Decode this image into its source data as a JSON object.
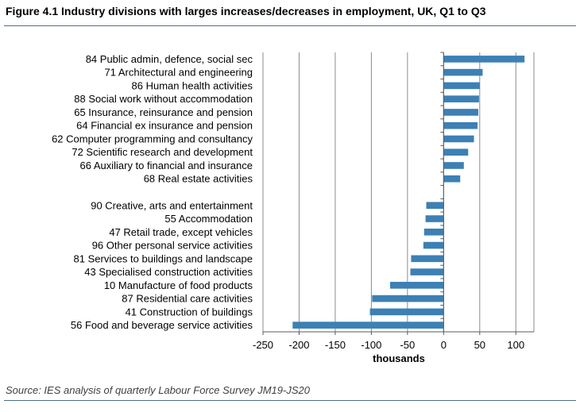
{
  "title": "Figure 4.1 Industry divisions with larges increases/decreases in employment, UK, Q1 to Q3",
  "source": "Source: IES analysis of quarterly Labour Force Survey JM19-JS20",
  "colors": {
    "bar": "#3c80b5",
    "grid": "#8c8c8c",
    "axis": "#595959",
    "rule": "#4a6f88"
  },
  "chart_data": {
    "type": "bar",
    "orientation": "horizontal",
    "categories": [
      "84  Public admin, defence, social sec",
      "71  Architectural and engineering",
      "86  Human health activities",
      "88  Social work without accommodation",
      "65  Insurance, reinsurance and pension",
      "64  Financial ex insurance and pension",
      "62  Computer programming and consultancy",
      "72  Scientific research and development",
      "66  Auxiliary to financial and insurance",
      "68  Real estate activities",
      "",
      "90  Creative, arts and entertainment",
      "55  Accommodation",
      "47  Retail trade, except vehicles",
      "96  Other personal service activities",
      "81  Services to buildings and landscape",
      "43  Specialised construction activities",
      "10  Manufacture of food products",
      "87  Residential care activities",
      "41  Construction of buildings",
      "56  Food and beverage service activities"
    ],
    "values": [
      112,
      54,
      50,
      49,
      48,
      47,
      42,
      34,
      28,
      23,
      null,
      -24,
      -25,
      -27,
      -28,
      -45,
      -46,
      -74,
      -99,
      -102,
      -209
    ],
    "xlabel": "thousands",
    "ylabel": "",
    "xlim": [
      -250,
      125
    ],
    "xticks": [
      -250,
      -200,
      -150,
      -100,
      -50,
      0,
      50,
      100
    ],
    "grid": true
  }
}
